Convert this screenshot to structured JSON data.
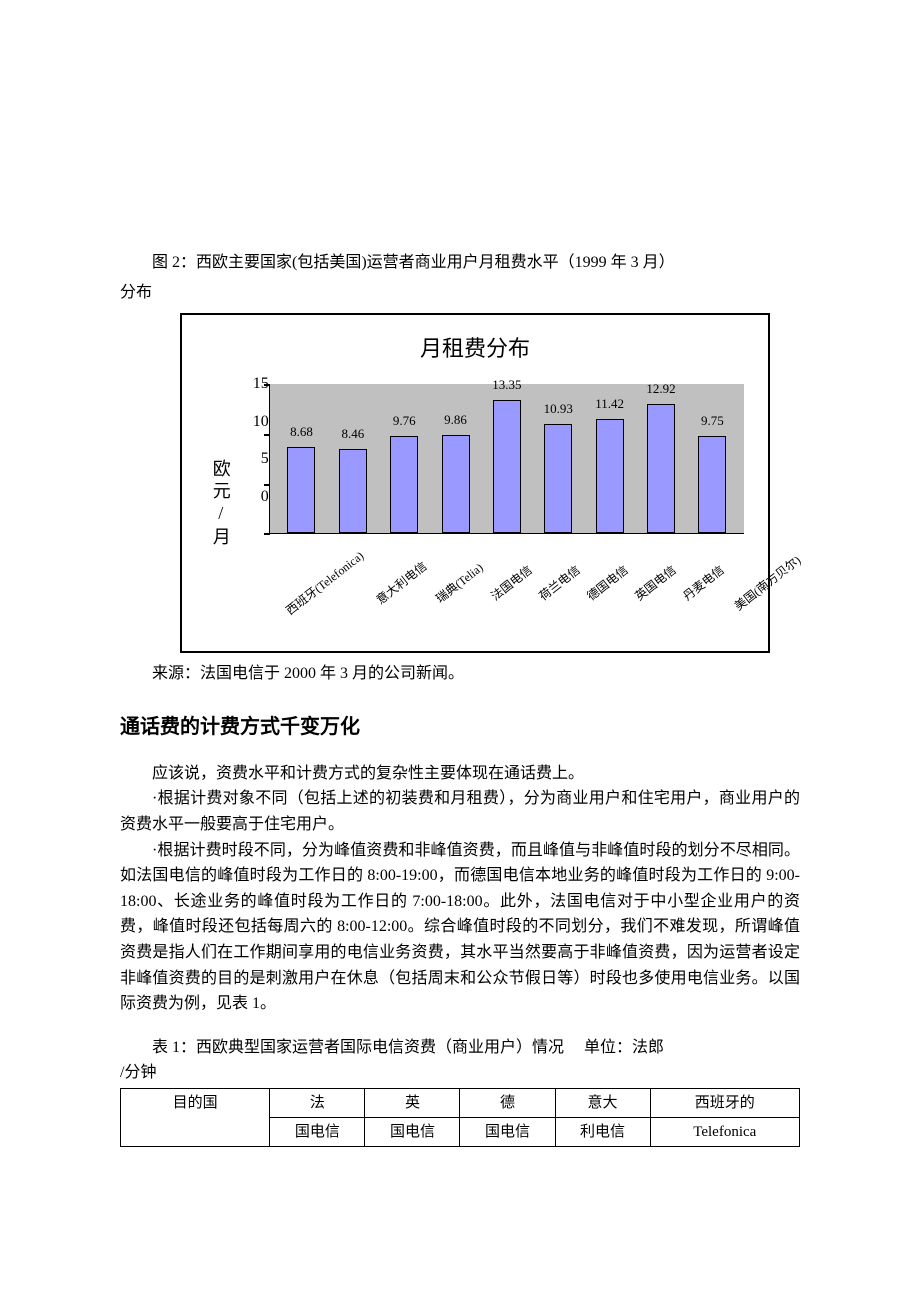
{
  "fig_caption_a": "图 2：西欧主要国家(包括美国)运营者商业用户月租费水平（1999 年 3 月）",
  "fig_caption_b": "分布",
  "chart": {
    "title": "月租费分布",
    "ylabel": "欧元/月",
    "ymax": 15,
    "yticks": [
      "15",
      "10",
      "5",
      "0"
    ],
    "bar_color": "#9999ff",
    "plot_bg": "#c0c0c0",
    "bars": [
      {
        "label": "西班牙(Telefonica)",
        "value": 8.68
      },
      {
        "label": "意大利电信",
        "value": 8.46
      },
      {
        "label": "瑞典(Telia)",
        "value": 9.76
      },
      {
        "label": "法国电信",
        "value": 9.86
      },
      {
        "label": "荷兰电信",
        "value": 13.35
      },
      {
        "label": "德国电信",
        "value": 10.93
      },
      {
        "label": "英国电信",
        "value": 11.42
      },
      {
        "label": "丹麦电信",
        "value": 12.92
      },
      {
        "label": "美国(南方贝尔)",
        "value": 9.75
      }
    ]
  },
  "source": "来源：法国电信于 2000 年 3 月的公司新闻。",
  "heading": "通话费的计费方式千变万化",
  "p1": "应该说，资费水平和计费方式的复杂性主要体现在通话费上。",
  "p2": "·根据计费对象不同（包括上述的初装费和月租费），分为商业用户和住宅用户，商业用户的资费水平一般要高于住宅用户。",
  "p3": "·根据计费时段不同，分为峰值资费和非峰值资费，而且峰值与非峰值时段的划分不尽相同。如法国电信的峰值时段为工作日的 8:00-19:00，而德国电信本地业务的峰值时段为工作日的 9:00-18:00、长途业务的峰值时段为工作日的 7:00-18:00。此外，法国电信对于中小型企业用户的资费，峰值时段还包括每周六的 8:00-12:00。综合峰值时段的不同划分，我们不难发现，所谓峰值资费是指人们在工作期间享用的电信业务资费，其水平当然要高于非峰值资费，因为运营者设定非峰值资费的目的是刺激用户在休息（包括周末和公众节假日等）时段也多使用电信业务。以国际资费为例，见表 1。",
  "table_caption_a": "表 1：西欧典型国家运营者国际电信资费（商业用户）情况",
  "table_caption_unit": "单位：法郎",
  "table_caption_b": "/分钟",
  "table": {
    "header_row1": [
      "目的国",
      "法",
      "英",
      "德",
      "意大",
      "西班牙的"
    ],
    "header_row2": [
      "",
      "国电信",
      "国电信",
      "国电信",
      "利电信",
      "Telefonica"
    ]
  }
}
